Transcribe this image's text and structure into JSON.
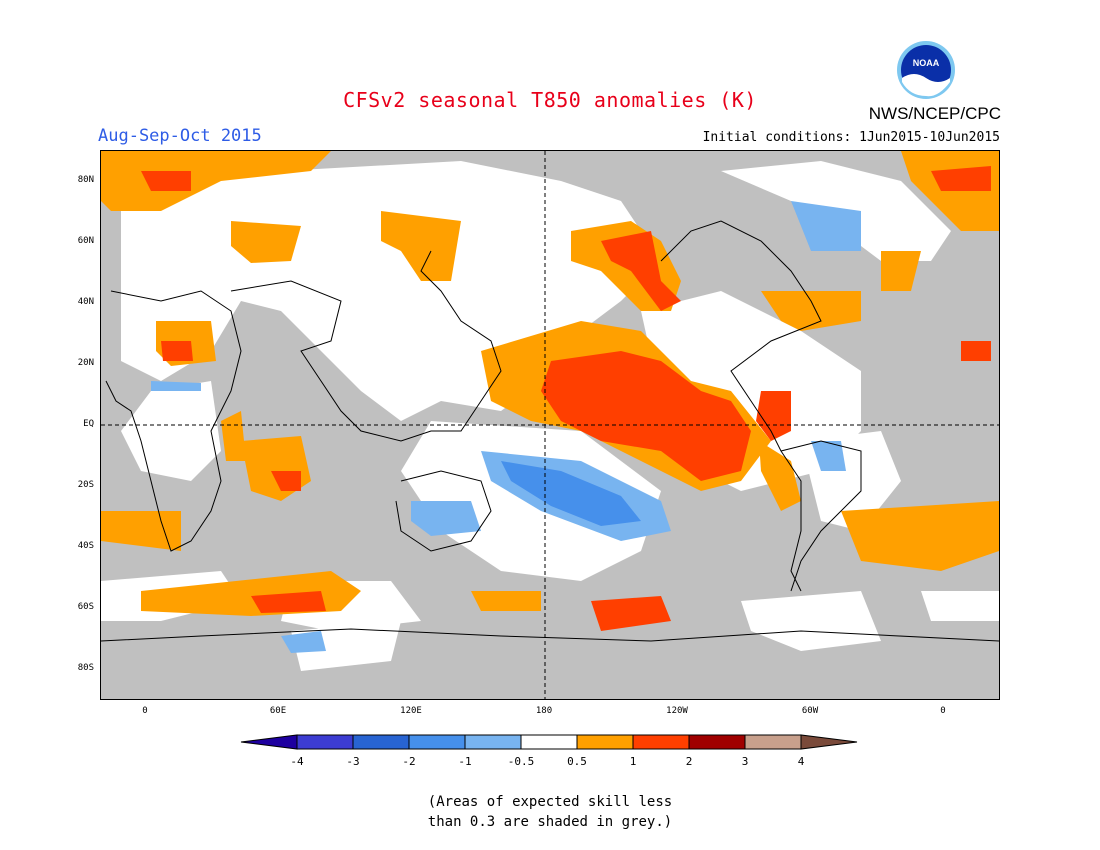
{
  "header": {
    "title": "CFSv2 seasonal T850 anomalies (K)",
    "season": "Aug-Sep-Oct 2015",
    "initial_conditions": "Initial conditions: 1Jun2015-10Jun2015",
    "agency": "NWS/NCEP/CPC",
    "logo_text": "NOAA"
  },
  "map": {
    "lat_labels": [
      "80N",
      "60N",
      "40N",
      "20N",
      "EQ",
      "20S",
      "40S",
      "60S",
      "80S"
    ],
    "lon_labels": [
      "0",
      "60E",
      "120E",
      "180",
      "120W",
      "60W",
      "0"
    ],
    "colors": {
      "grey_low_skill": "#c0c0c0",
      "neutral": "#ffffff",
      "warm_0p5_1": "#ffa000",
      "warm_1_2": "#ff3f00",
      "cool_m1_m0p5": "#78b4f0",
      "cool_m2_m1": "#4690eb"
    }
  },
  "colorbar": {
    "labels": [
      "-4",
      "-3",
      "-2",
      "-1",
      "-0.5",
      "0.5",
      "1",
      "2",
      "3",
      "4"
    ],
    "colors": [
      "#1e00a0",
      "#3c3cd2",
      "#2864d2",
      "#4690eb",
      "#78b4f0",
      "#ffffff",
      "#ffa000",
      "#ff3f00",
      "#a00000",
      "#c8a08c",
      "#7a4a3a"
    ]
  },
  "note": {
    "line1": "(Areas of expected skill less",
    "line2": "than 0.3 are shaded in grey.)"
  }
}
